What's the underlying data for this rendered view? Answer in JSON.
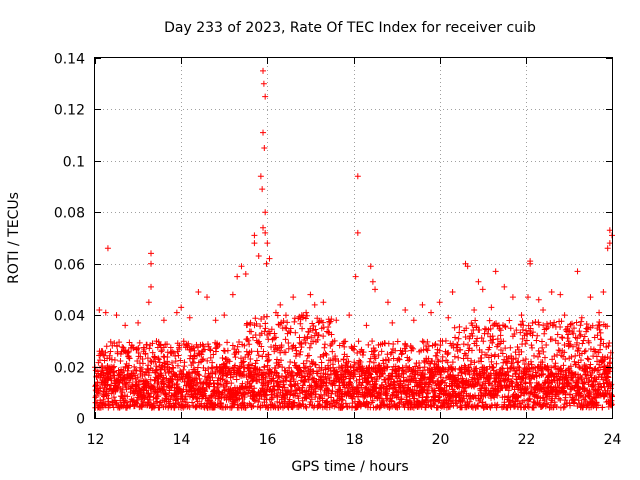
{
  "chart_data": {
    "type": "scatter",
    "title": "Day 233 of 2023, Rate Of TEC Index for receiver cuib",
    "xlabel": "GPS time / hours",
    "ylabel": "ROTI / TECUs",
    "xlim": [
      12,
      24
    ],
    "ylim": [
      0,
      0.14
    ],
    "xticks": [
      12,
      14,
      16,
      18,
      20,
      22,
      24
    ],
    "xtick_labels": [
      "12",
      "14",
      "16",
      "18",
      "20",
      "22",
      "24"
    ],
    "yticks": [
      0,
      0.02,
      0.04,
      0.06,
      0.08,
      0.1,
      0.12,
      0.14
    ],
    "ytick_labels": [
      "0",
      "0.02",
      "0.04",
      "0.06",
      "0.08",
      "0.1",
      "0.12",
      "0.14"
    ],
    "grid": true,
    "marker": "+",
    "color": "#ff0000",
    "series": [
      {
        "name": "ROTI",
        "points": [
          [
            12.3,
            0.066
          ],
          [
            13.3,
            0.064
          ],
          [
            13.3,
            0.06
          ],
          [
            13.3,
            0.051
          ],
          [
            13.25,
            0.045
          ],
          [
            14.4,
            0.049
          ],
          [
            14.0,
            0.043
          ],
          [
            14.6,
            0.047
          ],
          [
            15.2,
            0.048
          ],
          [
            15.4,
            0.059
          ],
          [
            15.3,
            0.055
          ],
          [
            15.5,
            0.056
          ],
          [
            15.7,
            0.071
          ],
          [
            15.7,
            0.068
          ],
          [
            15.8,
            0.063
          ],
          [
            15.85,
            0.094
          ],
          [
            15.88,
            0.089
          ],
          [
            15.9,
            0.135
          ],
          [
            15.92,
            0.13
          ],
          [
            15.95,
            0.125
          ],
          [
            15.9,
            0.111
          ],
          [
            15.93,
            0.105
          ],
          [
            15.95,
            0.08
          ],
          [
            15.9,
            0.074
          ],
          [
            15.95,
            0.072
          ],
          [
            16.0,
            0.068
          ],
          [
            15.98,
            0.06
          ],
          [
            16.05,
            0.062
          ],
          [
            16.3,
            0.044
          ],
          [
            16.6,
            0.047
          ],
          [
            17.0,
            0.048
          ],
          [
            17.3,
            0.045
          ],
          [
            16.9,
            0.041
          ],
          [
            17.1,
            0.044
          ],
          [
            18.1,
            0.094
          ],
          [
            18.1,
            0.072
          ],
          [
            18.05,
            0.055
          ],
          [
            18.4,
            0.059
          ],
          [
            18.45,
            0.053
          ],
          [
            18.5,
            0.05
          ],
          [
            18.8,
            0.045
          ],
          [
            19.2,
            0.042
          ],
          [
            19.6,
            0.044
          ],
          [
            20.0,
            0.045
          ],
          [
            20.3,
            0.049
          ],
          [
            20.6,
            0.06
          ],
          [
            20.65,
            0.059
          ],
          [
            20.9,
            0.053
          ],
          [
            21.0,
            0.05
          ],
          [
            21.3,
            0.057
          ],
          [
            21.5,
            0.051
          ],
          [
            21.7,
            0.047
          ],
          [
            22.1,
            0.061
          ],
          [
            22.1,
            0.06
          ],
          [
            22.05,
            0.047
          ],
          [
            22.3,
            0.046
          ],
          [
            22.6,
            0.049
          ],
          [
            22.8,
            0.048
          ],
          [
            23.2,
            0.057
          ],
          [
            23.5,
            0.047
          ],
          [
            23.8,
            0.049
          ],
          [
            23.9,
            0.066
          ],
          [
            23.95,
            0.073
          ],
          [
            23.95,
            0.068
          ],
          [
            24.0,
            0.071
          ],
          [
            12.1,
            0.042
          ],
          [
            12.25,
            0.041
          ],
          [
            12.5,
            0.04
          ],
          [
            12.7,
            0.036
          ],
          [
            13.0,
            0.037
          ],
          [
            13.6,
            0.038
          ],
          [
            13.9,
            0.041
          ],
          [
            14.2,
            0.039
          ],
          [
            14.8,
            0.038
          ],
          [
            15.0,
            0.04
          ],
          [
            16.2,
            0.041
          ],
          [
            16.8,
            0.04
          ],
          [
            17.6,
            0.038
          ],
          [
            17.9,
            0.04
          ],
          [
            18.3,
            0.036
          ],
          [
            18.9,
            0.037
          ],
          [
            19.4,
            0.038
          ],
          [
            19.8,
            0.041
          ],
          [
            20.2,
            0.039
          ],
          [
            20.8,
            0.042
          ],
          [
            21.2,
            0.043
          ],
          [
            21.9,
            0.04
          ],
          [
            22.4,
            0.042
          ],
          [
            22.9,
            0.04
          ],
          [
            23.3,
            0.039
          ],
          [
            23.7,
            0.041
          ]
        ],
        "dense_band": {
          "description": "dense cloud of samples every ~30 s across the full time range",
          "typical_min": 0.004,
          "typical_max": 0.03,
          "peak_regions": [
            {
              "x_range": [
                15.5,
                17.5
              ],
              "max": 0.04
            },
            {
              "x_range": [
                20.3,
                23.9
              ],
              "max": 0.038
            }
          ]
        }
      }
    ]
  }
}
